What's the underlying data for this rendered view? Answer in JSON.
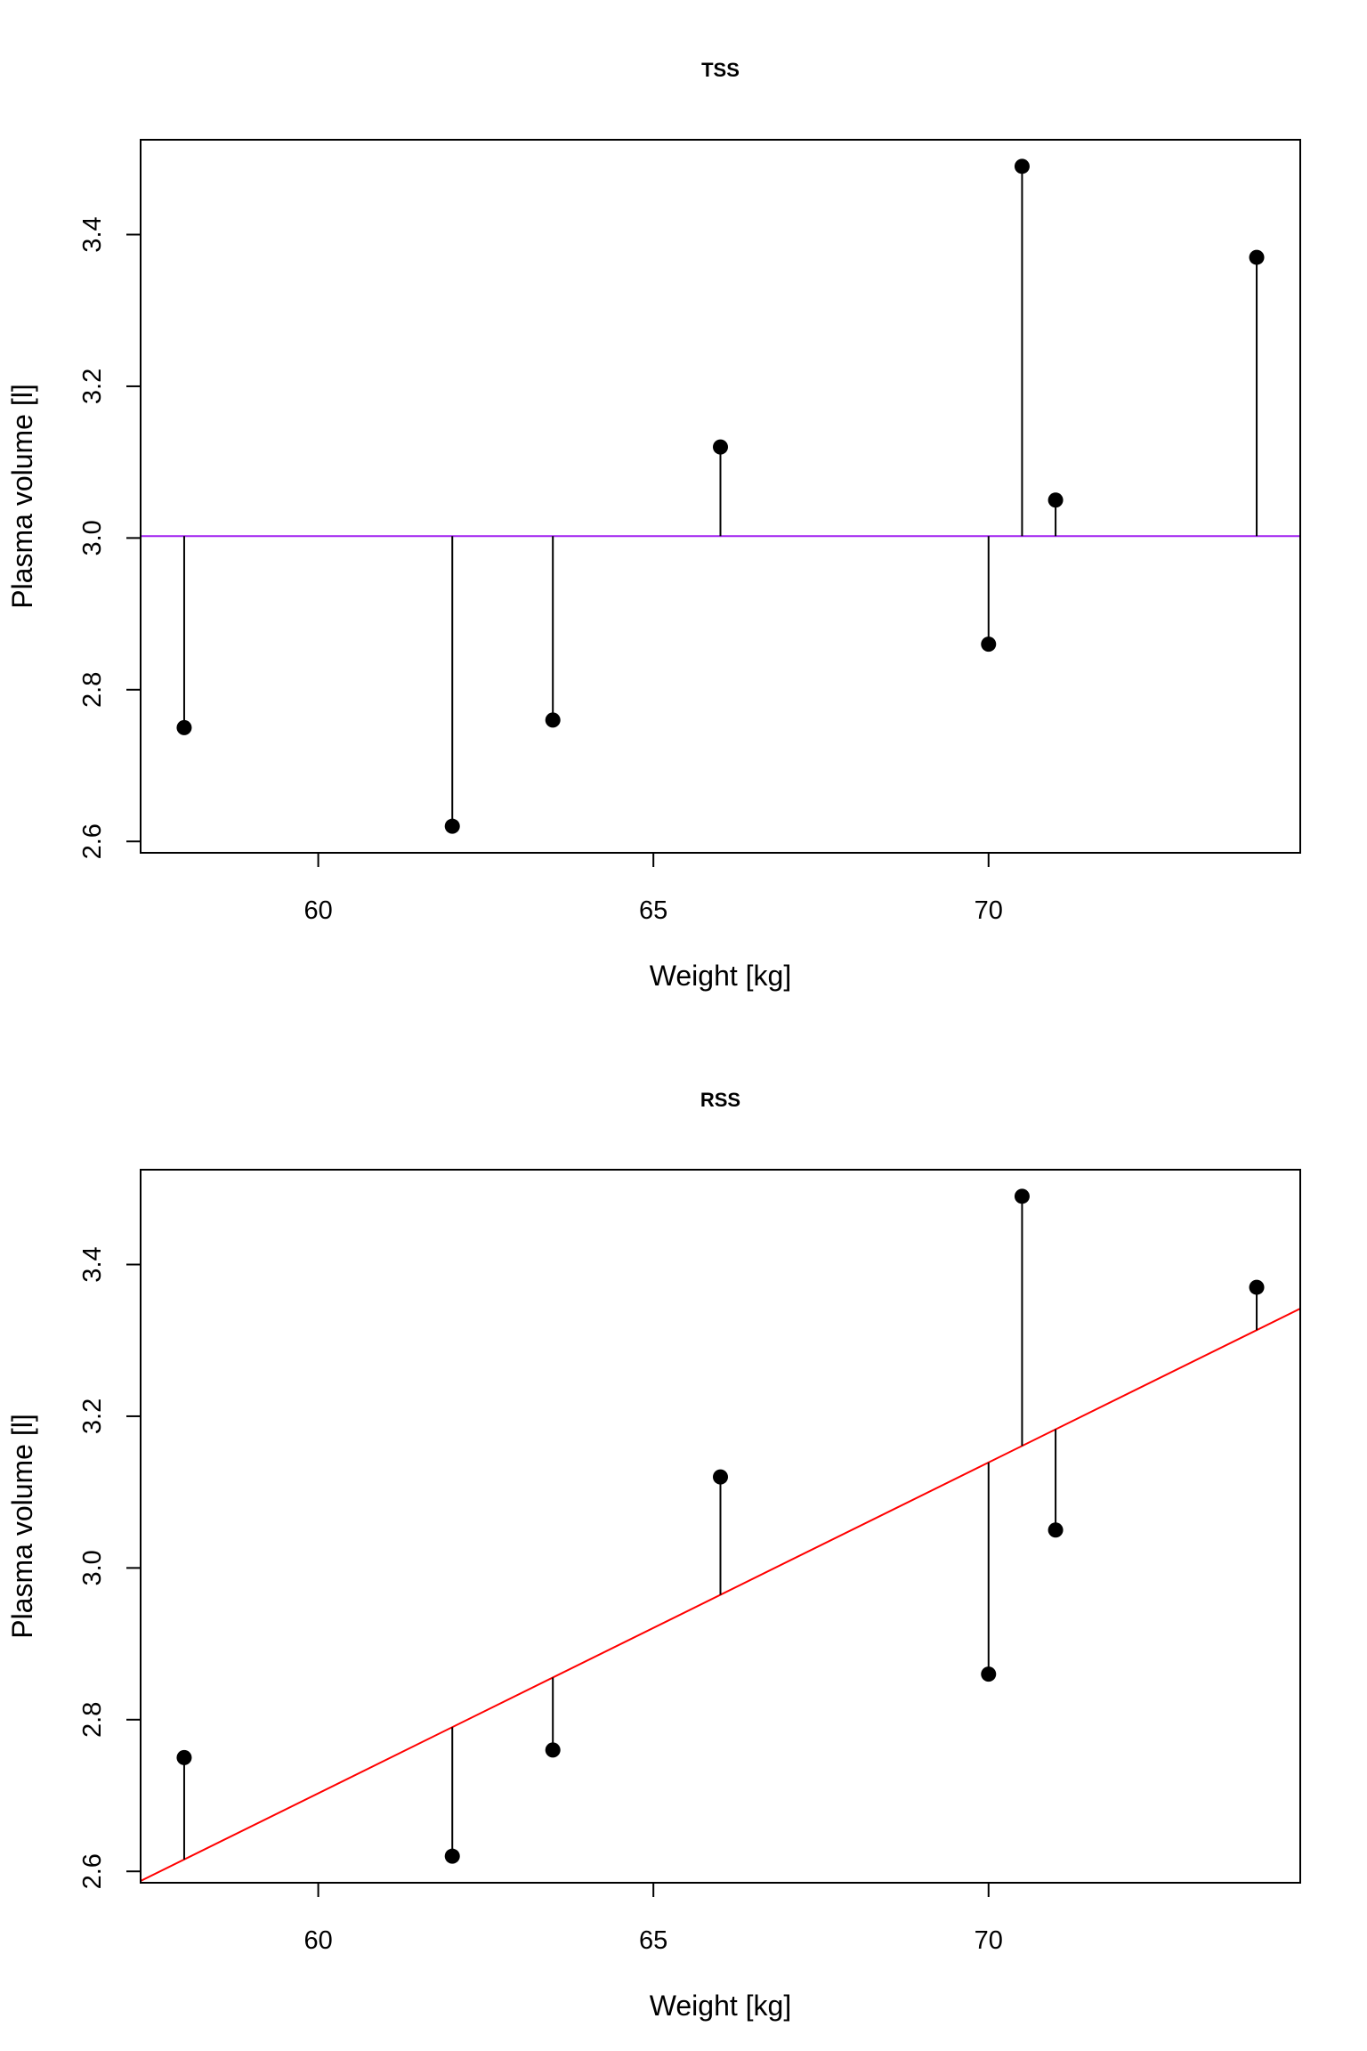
{
  "chart_data": [
    {
      "type": "scatter",
      "title": "TSS",
      "xlabel": "Weight [kg]",
      "ylabel": "Plasma volume [l]",
      "xlim": [
        57.35,
        74.65
      ],
      "ylim": [
        2.585,
        3.525
      ],
      "xticks": [
        60,
        65,
        70
      ],
      "xtick_labels": [
        "60",
        "65",
        "70"
      ],
      "yticks": [
        2.6,
        2.8,
        3.0,
        3.2,
        3.4
      ],
      "ytick_labels": [
        "2.6",
        "2.8",
        "3.0",
        "3.2",
        "3.4"
      ],
      "points": {
        "x": [
          58.0,
          62.0,
          63.5,
          66.0,
          70.0,
          70.5,
          71.0,
          74.0
        ],
        "y": [
          2.75,
          2.62,
          2.76,
          3.12,
          2.86,
          3.49,
          3.05,
          3.37
        ]
      },
      "reference_line": {
        "kind": "mean",
        "y": 3.0025,
        "color": "#a020f0"
      },
      "segments_to": "mean"
    },
    {
      "type": "scatter",
      "title": "RSS",
      "xlabel": "Weight [kg]",
      "ylabel": "Plasma volume [l]",
      "xlim": [
        57.35,
        74.65
      ],
      "ylim": [
        2.585,
        3.525
      ],
      "xticks": [
        60,
        65,
        70
      ],
      "xtick_labels": [
        "60",
        "65",
        "70"
      ],
      "yticks": [
        2.6,
        2.8,
        3.0,
        3.2,
        3.4
      ],
      "ytick_labels": [
        "2.6",
        "2.8",
        "3.0",
        "3.2",
        "3.4"
      ],
      "points": {
        "x": [
          58.0,
          62.0,
          63.5,
          66.0,
          70.0,
          70.5,
          71.0,
          74.0
        ],
        "y": [
          2.75,
          2.62,
          2.76,
          3.12,
          2.86,
          3.49,
          3.05,
          3.37
        ]
      },
      "reference_line": {
        "kind": "regression",
        "intercept": 0.0857,
        "slope": 0.04362,
        "color": "#ff0000"
      },
      "segments_to": "fit"
    }
  ]
}
